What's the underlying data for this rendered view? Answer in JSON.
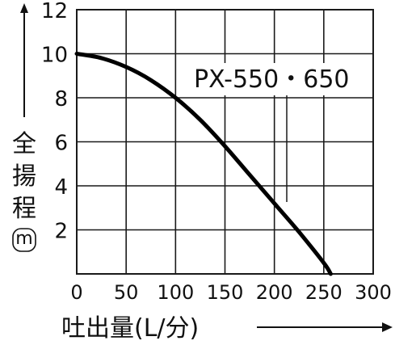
{
  "chart_data": {
    "type": "line",
    "title": "",
    "model_label": "PX-550・650",
    "xlabel": "吐出量(L/分)",
    "ylabel_chars": [
      "全",
      "揚",
      "程"
    ],
    "ylabel_unit": "m",
    "xlim": [
      0,
      300
    ],
    "ylim": [
      0,
      12
    ],
    "x_ticks": [
      0,
      50,
      100,
      150,
      200,
      250,
      300
    ],
    "y_ticks": [
      2,
      4,
      6,
      8,
      10,
      12
    ],
    "grid": true,
    "series": [
      {
        "x": [
          0,
          25,
          50,
          75,
          100,
          125,
          150,
          175,
          200,
          225,
          250,
          257
        ],
        "values": [
          10.0,
          9.8,
          9.4,
          8.8,
          8.0,
          7.0,
          5.8,
          4.5,
          3.2,
          1.9,
          0.5,
          0.0
        ]
      }
    ],
    "colors": {
      "line": "#000000",
      "grid": "#1a1a1a",
      "text": "#111111"
    }
  }
}
